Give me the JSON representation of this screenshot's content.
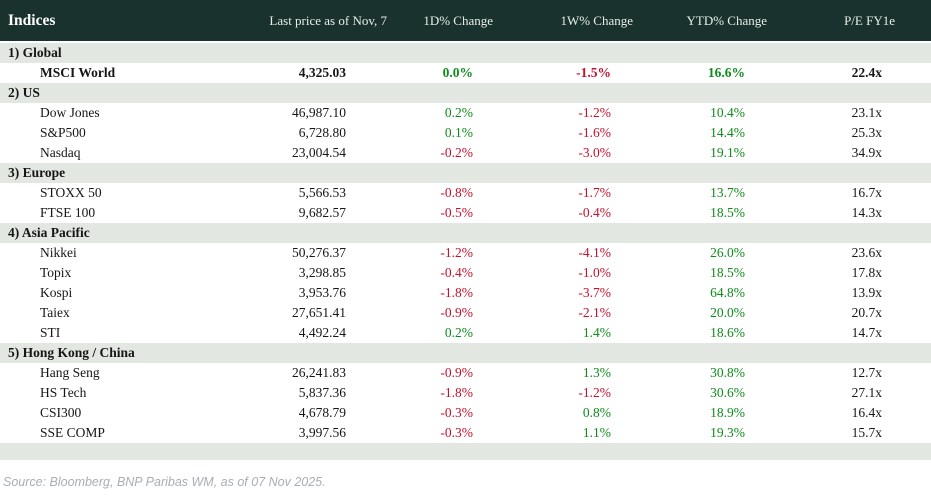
{
  "colors": {
    "header_bg": "#1a322d",
    "header_text": "#e8eee9",
    "title_text": "#ffffff",
    "section_bg": "#e3e7e2",
    "body_text": "#161616",
    "positive": "#0e8c1a",
    "negative": "#c8102e",
    "source_text": "#a9aeb3"
  },
  "chart_data": {
    "type": "table",
    "title": "Indices",
    "columns": [
      "Indices",
      "Last price as of Nov, 7",
      "1D% Change",
      "1W% Change",
      "YTD% Change",
      "P/E FY1e"
    ],
    "sections": [
      {
        "label": "1) Global",
        "rows": [
          {
            "name": "MSCI World",
            "last_price": "4,325.03",
            "d1": "0.0%",
            "w1": "-1.5%",
            "ytd": "16.6%",
            "pe": "22.4x",
            "bold": true
          }
        ]
      },
      {
        "label": "2) US",
        "rows": [
          {
            "name": "Dow Jones",
            "last_price": "46,987.10",
            "d1": "0.2%",
            "w1": "-1.2%",
            "ytd": "10.4%",
            "pe": "23.1x"
          },
          {
            "name": "S&P500",
            "last_price": "6,728.80",
            "d1": "0.1%",
            "w1": "-1.6%",
            "ytd": "14.4%",
            "pe": "25.3x"
          },
          {
            "name": "Nasdaq",
            "last_price": "23,004.54",
            "d1": "-0.2%",
            "w1": "-3.0%",
            "ytd": "19.1%",
            "pe": "34.9x"
          }
        ]
      },
      {
        "label": "3) Europe",
        "rows": [
          {
            "name": "STOXX 50",
            "last_price": "5,566.53",
            "d1": "-0.8%",
            "w1": "-1.7%",
            "ytd": "13.7%",
            "pe": "16.7x"
          },
          {
            "name": "FTSE 100",
            "last_price": "9,682.57",
            "d1": "-0.5%",
            "w1": "-0.4%",
            "ytd": "18.5%",
            "pe": "14.3x"
          }
        ]
      },
      {
        "label": "4) Asia Pacific",
        "rows": [
          {
            "name": "Nikkei",
            "last_price": "50,276.37",
            "d1": "-1.2%",
            "w1": "-4.1%",
            "ytd": "26.0%",
            "pe": "23.6x"
          },
          {
            "name": "Topix",
            "last_price": "3,298.85",
            "d1": "-0.4%",
            "w1": "-1.0%",
            "ytd": "18.5%",
            "pe": "17.8x"
          },
          {
            "name": "Kospi",
            "last_price": "3,953.76",
            "d1": "-1.8%",
            "w1": "-3.7%",
            "ytd": "64.8%",
            "pe": "13.9x"
          },
          {
            "name": "Taiex",
            "last_price": "27,651.41",
            "d1": "-0.9%",
            "w1": "-2.1%",
            "ytd": "20.0%",
            "pe": "20.7x"
          },
          {
            "name": "STI",
            "last_price": "4,492.24",
            "d1": "0.2%",
            "w1": "1.4%",
            "ytd": "18.6%",
            "pe": "14.7x"
          }
        ]
      },
      {
        "label": "5) Hong Kong / China",
        "rows": [
          {
            "name": "Hang Seng",
            "last_price": "26,241.83",
            "d1": "-0.9%",
            "w1": "1.3%",
            "ytd": "30.8%",
            "pe": "12.7x"
          },
          {
            "name": "HS Tech",
            "last_price": "5,837.36",
            "d1": "-1.8%",
            "w1": "-1.2%",
            "ytd": "30.6%",
            "pe": "27.1x"
          },
          {
            "name": "CSI300",
            "last_price": "4,678.79",
            "d1": "-0.3%",
            "w1": "0.8%",
            "ytd": "18.9%",
            "pe": "16.4x"
          },
          {
            "name": "SSE COMP",
            "last_price": "3,997.56",
            "d1": "-0.3%",
            "w1": "1.1%",
            "ytd": "19.3%",
            "pe": "15.7x"
          }
        ]
      }
    ]
  },
  "footer": {
    "source": "Source: Bloomberg, BNP Paribas WM, as of 07 Nov 2025."
  }
}
